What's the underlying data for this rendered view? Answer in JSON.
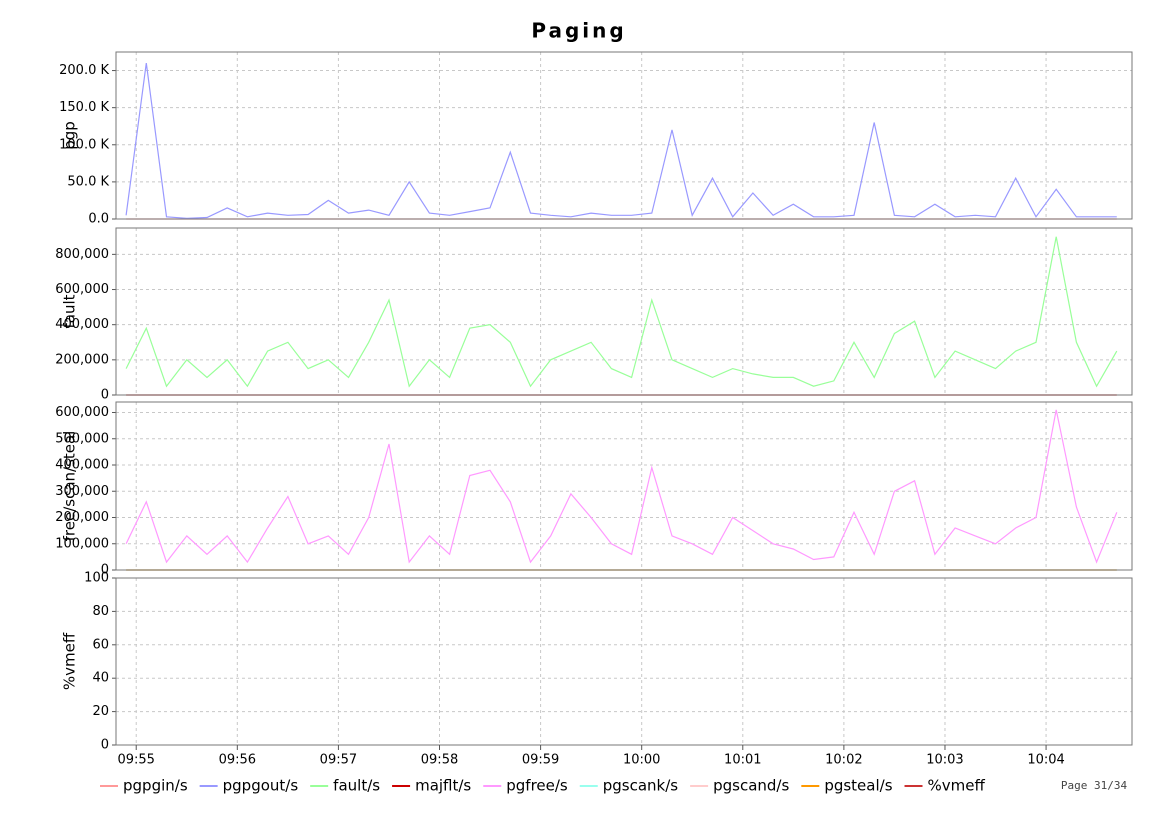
{
  "chart_data": {
    "type": "line",
    "title": "Paging",
    "x": [
      -0.1,
      0.1,
      0.3,
      0.5,
      0.7,
      0.9,
      1.1,
      1.3,
      1.5,
      1.7,
      1.9,
      2.1,
      2.3,
      2.5,
      2.7,
      2.9,
      3.1,
      3.3,
      3.5,
      3.7,
      3.9,
      4.1,
      4.3,
      4.5,
      4.7,
      4.9,
      5.1,
      5.3,
      5.5,
      5.7,
      5.9,
      6.1,
      6.3,
      6.5,
      6.7,
      6.9,
      7.1,
      7.3,
      7.5,
      7.7,
      7.9,
      8.1,
      8.3,
      8.5,
      8.7,
      8.9,
      9.1,
      9.3,
      9.5,
      9.7
    ],
    "xlim": [
      -0.2,
      9.85
    ],
    "xticks": [
      {
        "value": 0,
        "label": "09:55"
      },
      {
        "value": 1,
        "label": "09:56"
      },
      {
        "value": 2,
        "label": "09:57"
      },
      {
        "value": 3,
        "label": "09:58"
      },
      {
        "value": 4,
        "label": "09:59"
      },
      {
        "value": 5,
        "label": "10:00"
      },
      {
        "value": 6,
        "label": "10:01"
      },
      {
        "value": 7,
        "label": "10:02"
      },
      {
        "value": 8,
        "label": "10:03"
      },
      {
        "value": 9,
        "label": "10:04"
      }
    ],
    "grid": true,
    "panels": [
      {
        "ylabel": "pgp",
        "ylim": [
          0,
          225000
        ],
        "yticks": [
          {
            "value": 0,
            "label": "0.0"
          },
          {
            "value": 50000,
            "label": "50.0 K"
          },
          {
            "value": 100000,
            "label": "100.0 K"
          },
          {
            "value": 150000,
            "label": "150.0 K"
          },
          {
            "value": 200000,
            "label": "200.0 K"
          }
        ],
        "series": [
          {
            "name": "pgpgin/s",
            "color": "#ff9999",
            "values": [
              0,
              0,
              0,
              0,
              0,
              0,
              0,
              0,
              0,
              0,
              0,
              0,
              0,
              0,
              0,
              0,
              0,
              0,
              0,
              0,
              0,
              0,
              0,
              0,
              0,
              0,
              0,
              0,
              0,
              0,
              0,
              0,
              0,
              0,
              0,
              0,
              0,
              0,
              0,
              0,
              0,
              0,
              0,
              0,
              0,
              0,
              0,
              0,
              0,
              0
            ]
          },
          {
            "name": "pgpgout/s",
            "color": "#9999ff",
            "values": [
              5000,
              210000,
              3000,
              1000,
              2000,
              15000,
              3000,
              8000,
              5000,
              6000,
              25000,
              8000,
              12000,
              5000,
              50000,
              8000,
              5000,
              10000,
              15000,
              90000,
              8000,
              5000,
              3000,
              8000,
              5000,
              5000,
              8000,
              120000,
              5000,
              55000,
              3000,
              35000,
              5000,
              20000,
              3000,
              3000,
              5000,
              130000,
              5000,
              3000,
              20000,
              3000,
              5000,
              3000,
              55000,
              3000,
              40000,
              3000,
              3000,
              3000
            ]
          }
        ]
      },
      {
        "ylabel": "fault",
        "ylim": [
          0,
          950000
        ],
        "yticks": [
          0,
          {
            "value": 200000,
            "label": "200,000"
          },
          {
            "value": 400000,
            "label": "400,000"
          },
          {
            "value": 600000,
            "label": "600,000"
          },
          {
            "value": 800000,
            "label": "800,000"
          }
        ],
        "series": [
          {
            "name": "fault/s",
            "color": "#99ff99",
            "values": [
              150000,
              380000,
              50000,
              200000,
              100000,
              200000,
              50000,
              250000,
              300000,
              150000,
              200000,
              100000,
              300000,
              540000,
              50000,
              200000,
              100000,
              380000,
              400000,
              300000,
              50000,
              200000,
              250000,
              300000,
              150000,
              100000,
              540000,
              200000,
              150000,
              100000,
              150000,
              120000,
              100000,
              100000,
              50000,
              80000,
              300000,
              100000,
              350000,
              420000,
              100000,
              250000,
              200000,
              150000,
              250000,
              300000,
              900000,
              300000,
              50000,
              250000
            ]
          },
          {
            "name": "majflt/s",
            "color": "#cc0000",
            "values": [
              0,
              0,
              0,
              0,
              0,
              0,
              0,
              0,
              0,
              0,
              0,
              0,
              0,
              0,
              0,
              0,
              0,
              0,
              0,
              0,
              0,
              0,
              0,
              0,
              0,
              0,
              0,
              0,
              0,
              0,
              0,
              0,
              0,
              0,
              0,
              0,
              0,
              0,
              0,
              0,
              0,
              0,
              0,
              0,
              0,
              0,
              0,
              0,
              0,
              0
            ]
          }
        ]
      },
      {
        "ylabel": "free/scan/steal",
        "ylim": [
          0,
          640000
        ],
        "yticks": [
          0,
          {
            "value": 100000,
            "label": "100,000"
          },
          {
            "value": 200000,
            "label": "200,000"
          },
          {
            "value": 300000,
            "label": "300,000"
          },
          {
            "value": 400000,
            "label": "400,000"
          },
          {
            "value": 500000,
            "label": "500,000"
          },
          {
            "value": 600000,
            "label": "600,000"
          }
        ],
        "series": [
          {
            "name": "pgfree/s",
            "color": "#ff99ff",
            "values": [
              100000,
              260000,
              30000,
              130000,
              60000,
              130000,
              30000,
              160000,
              280000,
              100000,
              130000,
              60000,
              200000,
              480000,
              30000,
              130000,
              60000,
              360000,
              380000,
              260000,
              30000,
              130000,
              290000,
              200000,
              100000,
              60000,
              390000,
              130000,
              100000,
              60000,
              200000,
              150000,
              100000,
              80000,
              40000,
              50000,
              220000,
              60000,
              300000,
              340000,
              60000,
              160000,
              130000,
              100000,
              160000,
              200000,
              610000,
              240000,
              30000,
              220000
            ]
          },
          {
            "name": "pgscank/s",
            "color": "#99ffee",
            "values": [
              0,
              0,
              0,
              0,
              0,
              0,
              0,
              0,
              0,
              0,
              0,
              0,
              0,
              0,
              0,
              0,
              0,
              0,
              0,
              0,
              0,
              0,
              0,
              0,
              0,
              0,
              0,
              0,
              0,
              0,
              0,
              0,
              0,
              0,
              0,
              0,
              0,
              0,
              0,
              0,
              0,
              0,
              0,
              0,
              0,
              0,
              0,
              0,
              0,
              0
            ]
          },
          {
            "name": "pgscand/s",
            "color": "#ffcccc",
            "values": [
              0,
              0,
              0,
              0,
              0,
              0,
              0,
              0,
              0,
              0,
              0,
              0,
              0,
              0,
              0,
              0,
              0,
              0,
              0,
              0,
              0,
              0,
              0,
              0,
              0,
              0,
              0,
              0,
              0,
              0,
              0,
              0,
              0,
              0,
              0,
              0,
              0,
              0,
              0,
              0,
              0,
              0,
              0,
              0,
              0,
              0,
              0,
              0,
              0,
              0
            ]
          },
          {
            "name": "pgsteal/s",
            "color": "#ff9900",
            "values": [
              0,
              0,
              0,
              0,
              0,
              0,
              0,
              0,
              0,
              0,
              0,
              0,
              0,
              0,
              0,
              0,
              0,
              0,
              0,
              0,
              0,
              0,
              0,
              0,
              0,
              0,
              0,
              0,
              0,
              0,
              0,
              0,
              0,
              0,
              0,
              0,
              0,
              0,
              0,
              0,
              0,
              0,
              0,
              0,
              0,
              0,
              0,
              0,
              0,
              0
            ]
          }
        ]
      },
      {
        "ylabel": "%vmeff",
        "ylim": [
          0,
          100
        ],
        "yticks": [
          0,
          20,
          40,
          60,
          80,
          100
        ],
        "series": [
          {
            "name": "%vmeff",
            "color": "#cc3333",
            "values": [
              null,
              null,
              null,
              null,
              null,
              null,
              null,
              null,
              null,
              null,
              null,
              null,
              null,
              null,
              null,
              null,
              null,
              null,
              null,
              null,
              null,
              null,
              null,
              null,
              null,
              null,
              null,
              null,
              null,
              null,
              null,
              null,
              null,
              null,
              null,
              null,
              null,
              null,
              null,
              null,
              null,
              null,
              null,
              null,
              null,
              null,
              null,
              null,
              null,
              null
            ]
          }
        ]
      }
    ]
  },
  "footer": "Page 31/34"
}
